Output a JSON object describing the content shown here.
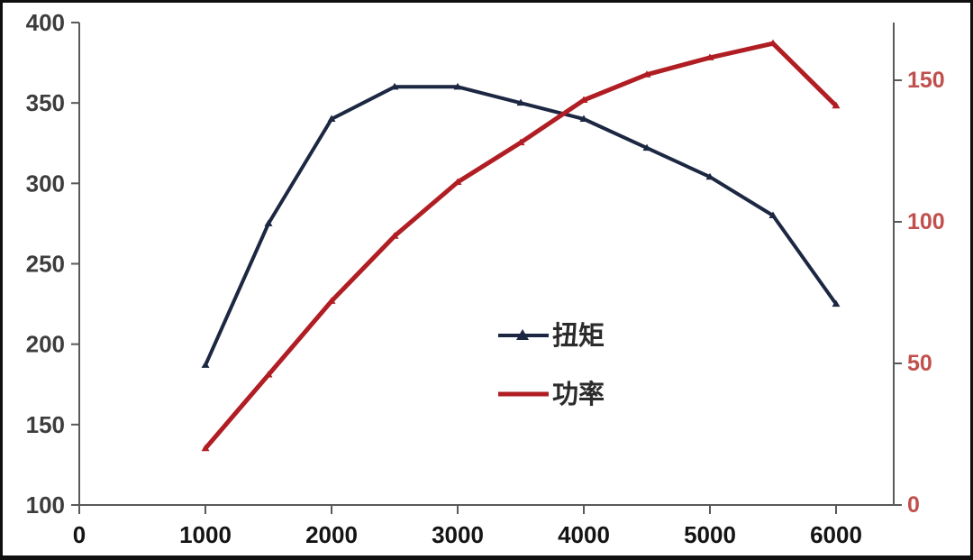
{
  "frame": {
    "background": "#ffffff",
    "border_color": "#101010",
    "axis_line_color": "#595959"
  },
  "chart_data": {
    "type": "line",
    "title": "",
    "xlabel": "",
    "ylabel_left": "",
    "ylabel_right": "",
    "grid": false,
    "x": [
      1000,
      1500,
      2000,
      2500,
      3000,
      3500,
      4000,
      4500,
      5000,
      5500,
      6000
    ],
    "series": [
      {
        "name": "扭矩",
        "axis": "left",
        "color": "#1c2742",
        "marker": "triangle",
        "line_width": 4,
        "values": [
          187,
          275,
          340,
          360,
          360,
          350,
          340,
          322,
          304,
          280,
          225
        ]
      },
      {
        "name": "功率",
        "axis": "right",
        "color": "#b01e23",
        "marker": "triangle",
        "line_width": 5,
        "values": [
          20,
          46,
          72,
          95,
          114,
          128,
          143,
          152,
          158,
          163,
          141
        ]
      }
    ],
    "left_axis": {
      "ticks": [
        400,
        350,
        300,
        250,
        200,
        150,
        100
      ],
      "range": [
        100,
        400
      ],
      "label_color": "#3d3d3d"
    },
    "right_axis": {
      "ticks": [
        150,
        100,
        50,
        0
      ],
      "range": [
        0,
        170
      ],
      "label_color": "#c0504d"
    },
    "x_axis": {
      "ticks": [
        0,
        1000,
        2000,
        3000,
        4000,
        5000,
        6000
      ],
      "range": [
        0,
        6460
      ],
      "label_color": "#141414"
    },
    "legend": {
      "position": "center",
      "entries": [
        "扭矩",
        "功率"
      ]
    }
  }
}
